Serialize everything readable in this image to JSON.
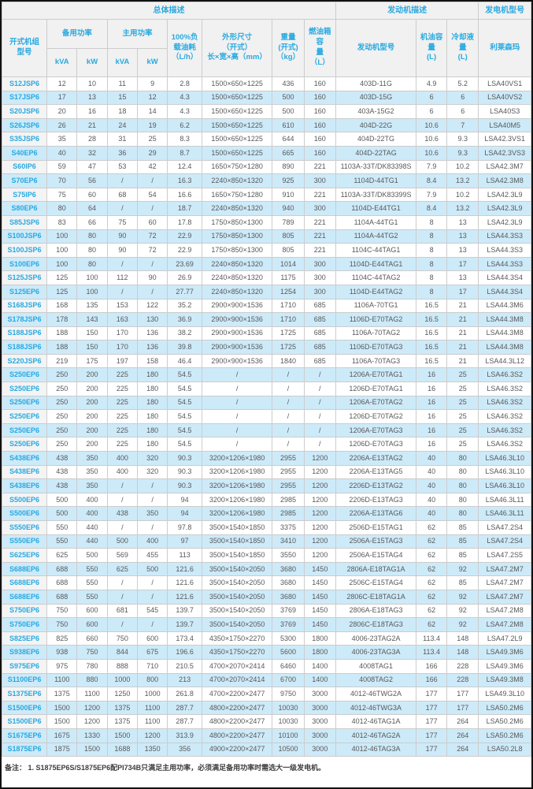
{
  "colors": {
    "accent": "#29A9E0",
    "row_alt": "#CDEAF9",
    "header_bg": "#F1F1F1",
    "model_bg": "#F4F4F4",
    "border": "#CCCCCC",
    "text": "#595959"
  },
  "header": {
    "groups": [
      {
        "label": "总体描述",
        "colspan": 9
      },
      {
        "label": "发动机描述",
        "colspan": 3
      },
      {
        "label": "发电机型号",
        "colspan": 1
      }
    ],
    "model": "开式机组\n型号",
    "standby": "备用功率",
    "prime": "主用功率",
    "sub_kva": "kVA",
    "sub_kw": "kW",
    "fuel": "100%负\n载油耗\n（L/h）",
    "dims": "外形尺寸\n（开式）\n长×宽×高（mm）",
    "weight": "重量\n(开式)\n（kg）",
    "tank": "燃油箱容\n量\n（L）",
    "engine": "发动机型号",
    "oil": "机油容量\n(L)",
    "coolant": "冷却液量\n(L)",
    "alternator": "利莱森玛"
  },
  "rows": [
    [
      "S12JSP6",
      "12",
      "10",
      "11",
      "9",
      "2.8",
      "1500×650×1225",
      "436",
      "160",
      "403D-11G",
      "4.9",
      "5.2",
      "LSA40VS1"
    ],
    [
      "S17JSP6",
      "17",
      "13",
      "15",
      "12",
      "4.3",
      "1500×650×1225",
      "500",
      "160",
      "403D-15G",
      "6",
      "6",
      "LSA40VS2"
    ],
    [
      "S20JSP6",
      "20",
      "16",
      "18",
      "14",
      "4.3",
      "1500×650×1225",
      "500",
      "160",
      "403A-15G2",
      "6",
      "6",
      "LSA40S3"
    ],
    [
      "S26JSP6",
      "26",
      "21",
      "24",
      "19",
      "6.2",
      "1500×650×1225",
      "610",
      "160",
      "404D-22G",
      "10.6",
      "7",
      "LSA40M5"
    ],
    [
      "S35JSP6",
      "35",
      "28",
      "31",
      "25",
      "8.3",
      "1500×650×1225",
      "644",
      "160",
      "404D-22TG",
      "10.6",
      "9.3",
      "LSA42.3VS1"
    ],
    [
      "S40EP6",
      "40",
      "32",
      "36",
      "29",
      "8.7",
      "1500×650×1225",
      "665",
      "160",
      "404D-22TAG",
      "10.6",
      "9.3",
      "LSA42.3VS3"
    ],
    [
      "S60IP6",
      "59",
      "47",
      "53",
      "42",
      "12.4",
      "1650×750×1280",
      "890",
      "221",
      "1103A-33T/DK83398S",
      "7.9",
      "10.2",
      "LSA42.3M7"
    ],
    [
      "S70EP6",
      "70",
      "56",
      "/",
      "/",
      "16.3",
      "2240×850×1320",
      "925",
      "300",
      "1104D-44TG1",
      "8.4",
      "13.2",
      "LSA42.3M8"
    ],
    [
      "S75IP6",
      "75",
      "60",
      "68",
      "54",
      "16.6",
      "1650×750×1280",
      "910",
      "221",
      "1103A-33T/DK83399S",
      "7.9",
      "10.2",
      "LSA42.3L9"
    ],
    [
      "S80EP6",
      "80",
      "64",
      "/",
      "/",
      "18.7",
      "2240×850×1320",
      "940",
      "300",
      "1104D-E44TG1",
      "8.4",
      "13.2",
      "LSA42.3L9"
    ],
    [
      "S85JSP6",
      "83",
      "66",
      "75",
      "60",
      "17.8",
      "1750×850×1300",
      "789",
      "221",
      "1104A-44TG1",
      "8",
      "13",
      "LSA42.3L9"
    ],
    [
      "S100JSP6",
      "100",
      "80",
      "90",
      "72",
      "22.9",
      "1750×850×1300",
      "805",
      "221",
      "1104A-44TG2",
      "8",
      "13",
      "LSA44.3S3"
    ],
    [
      "S100JSP6",
      "100",
      "80",
      "90",
      "72",
      "22.9",
      "1750×850×1300",
      "805",
      "221",
      "1104C-44TAG1",
      "8",
      "13",
      "LSA44.3S3"
    ],
    [
      "S100EP6",
      "100",
      "80",
      "/",
      "/",
      "23.69",
      "2240×850×1320",
      "1014",
      "300",
      "1104D-E44TAG1",
      "8",
      "17",
      "LSA44.3S3"
    ],
    [
      "S125JSP6",
      "125",
      "100",
      "112",
      "90",
      "26.9",
      "2240×850×1320",
      "1175",
      "300",
      "1104C-44TAG2",
      "8",
      "13",
      "LSA44.3S4"
    ],
    [
      "S125EP6",
      "125",
      "100",
      "/",
      "/",
      "27.77",
      "2240×850×1320",
      "1254",
      "300",
      "1104D-E44TAG2",
      "8",
      "17",
      "LSA44.3S4"
    ],
    [
      "S168JSP6",
      "168",
      "135",
      "153",
      "122",
      "35.2",
      "2900×900×1536",
      "1710",
      "685",
      "1106A-70TG1",
      "16.5",
      "21",
      "LSA44.3M6"
    ],
    [
      "S178JSP6",
      "178",
      "143",
      "163",
      "130",
      "36.9",
      "2900×900×1536",
      "1710",
      "685",
      "1106D-E70TAG2",
      "16.5",
      "21",
      "LSA44.3M8"
    ],
    [
      "S188JSP6",
      "188",
      "150",
      "170",
      "136",
      "38.2",
      "2900×900×1536",
      "1725",
      "685",
      "1106A-70TAG2",
      "16.5",
      "21",
      "LSA44.3M8"
    ],
    [
      "S188JSP6",
      "188",
      "150",
      "170",
      "136",
      "39.8",
      "2900×900×1536",
      "1725",
      "685",
      "1106D-E70TAG3",
      "16.5",
      "21",
      "LSA44.3M8"
    ],
    [
      "S220JSP6",
      "219",
      "175",
      "197",
      "158",
      "46.4",
      "2900×900×1536",
      "1840",
      "685",
      "1106A-70TAG3",
      "16.5",
      "21",
      "LSA44.3L12"
    ],
    [
      "S250EP6",
      "250",
      "200",
      "225",
      "180",
      "54.5",
      "/",
      "/",
      "/",
      "1206A-E70TAG1",
      "16",
      "25",
      "LSA46.3S2"
    ],
    [
      "S250EP6",
      "250",
      "200",
      "225",
      "180",
      "54.5",
      "/",
      "/",
      "/",
      "1206D-E70TAG1",
      "16",
      "25",
      "LSA46.3S2"
    ],
    [
      "S250EP6",
      "250",
      "200",
      "225",
      "180",
      "54.5",
      "/",
      "/",
      "/",
      "1206A-E70TAG2",
      "16",
      "25",
      "LSA46.3S2"
    ],
    [
      "S250EP6",
      "250",
      "200",
      "225",
      "180",
      "54.5",
      "/",
      "/",
      "/",
      "1206D-E70TAG2",
      "16",
      "25",
      "LSA46.3S2"
    ],
    [
      "S250EP6",
      "250",
      "200",
      "225",
      "180",
      "54.5",
      "/",
      "/",
      "/",
      "1206A-E70TAG3",
      "16",
      "25",
      "LSA46.3S2"
    ],
    [
      "S250EP6",
      "250",
      "200",
      "225",
      "180",
      "54.5",
      "/",
      "/",
      "/",
      "1206D-E70TAG3",
      "16",
      "25",
      "LSA46.3S2"
    ],
    [
      "S438EP6",
      "438",
      "350",
      "400",
      "320",
      "90.3",
      "3200×1206×1980",
      "2955",
      "1200",
      "2206A-E13TAG2",
      "40",
      "80",
      "LSA46.3L10"
    ],
    [
      "S438EP6",
      "438",
      "350",
      "400",
      "320",
      "90.3",
      "3200×1206×1980",
      "2955",
      "1200",
      "2206A-E13TAG5",
      "40",
      "80",
      "LSA46.3L10"
    ],
    [
      "S438EP6",
      "438",
      "350",
      "/",
      "/",
      "90.3",
      "3200×1206×1980",
      "2955",
      "1200",
      "2206D-E13TAG2",
      "40",
      "80",
      "LSA46.3L10"
    ],
    [
      "S500EP6",
      "500",
      "400",
      "/",
      "/",
      "94",
      "3200×1206×1980",
      "2985",
      "1200",
      "2206D-E13TAG3",
      "40",
      "80",
      "LSA46.3L11"
    ],
    [
      "S500EP6",
      "500",
      "400",
      "438",
      "350",
      "94",
      "3200×1206×1980",
      "2985",
      "1200",
      "2206A-E13TAG6",
      "40",
      "80",
      "LSA46.3L11"
    ],
    [
      "S550EP6",
      "550",
      "440",
      "/",
      "/",
      "97.8",
      "3500×1540×1850",
      "3375",
      "1200",
      "2506D-E15TAG1",
      "62",
      "85",
      "LSA47.2S4"
    ],
    [
      "S550EP6",
      "550",
      "440",
      "500",
      "400",
      "97",
      "3500×1540×1850",
      "3410",
      "1200",
      "2506A-E15TAG3",
      "62",
      "85",
      "LSA47.2S4"
    ],
    [
      "S625EP6",
      "625",
      "500",
      "569",
      "455",
      "113",
      "3500×1540×1850",
      "3550",
      "1200",
      "2506A-E15TAG4",
      "62",
      "85",
      "LSA47.2S5"
    ],
    [
      "S688EP6",
      "688",
      "550",
      "625",
      "500",
      "121.6",
      "3500×1540×2050",
      "3680",
      "1450",
      "2806A-E18TAG1A",
      "62",
      "92",
      "LSA47.2M7"
    ],
    [
      "S688EP6",
      "688",
      "550",
      "/",
      "/",
      "121.6",
      "3500×1540×2050",
      "3680",
      "1450",
      "2506C-E15TAG4",
      "62",
      "85",
      "LSA47.2M7"
    ],
    [
      "S688EP6",
      "688",
      "550",
      "/",
      "/",
      "121.6",
      "3500×1540×2050",
      "3680",
      "1450",
      "2806C-E18TAG1A",
      "62",
      "92",
      "LSA47.2M7"
    ],
    [
      "S750EP6",
      "750",
      "600",
      "681",
      "545",
      "139.7",
      "3500×1540×2050",
      "3769",
      "1450",
      "2806A-E18TAG3",
      "62",
      "92",
      "LSA47.2M8"
    ],
    [
      "S750EP6",
      "750",
      "600",
      "/",
      "/",
      "139.7",
      "3500×1540×2050",
      "3769",
      "1450",
      "2806C-E18TAG3",
      "62",
      "92",
      "LSA47.2M8"
    ],
    [
      "S825EP6",
      "825",
      "660",
      "750",
      "600",
      "173.4",
      "4350×1750×2270",
      "5300",
      "1800",
      "4006-23TAG2A",
      "113.4",
      "148",
      "LSA47.2L9"
    ],
    [
      "S938EP6",
      "938",
      "750",
      "844",
      "675",
      "196.6",
      "4350×1750×2270",
      "5600",
      "1800",
      "4006-23TAG3A",
      "113.4",
      "148",
      "LSA49.3M6"
    ],
    [
      "S975EP6",
      "975",
      "780",
      "888",
      "710",
      "210.5",
      "4700×2070×2414",
      "6460",
      "1400",
      "4008TAG1",
      "166",
      "228",
      "LSA49.3M6"
    ],
    [
      "S1100EP6",
      "1100",
      "880",
      "1000",
      "800",
      "213",
      "4700×2070×2414",
      "6700",
      "1400",
      "4008TAG2",
      "166",
      "228",
      "LSA49.3M8"
    ],
    [
      "S1375EP6",
      "1375",
      "1100",
      "1250",
      "1000",
      "261.8",
      "4700×2200×2477",
      "9750",
      "3000",
      "4012-46TWG2A",
      "177",
      "177",
      "LSA49.3L10"
    ],
    [
      "S1500EP6",
      "1500",
      "1200",
      "1375",
      "1100",
      "287.7",
      "4800×2200×2477",
      "10030",
      "3000",
      "4012-46TWG3A",
      "177",
      "177",
      "LSA50.2M6"
    ],
    [
      "S1500EP6",
      "1500",
      "1200",
      "1375",
      "1100",
      "287.7",
      "4800×2200×2477",
      "10030",
      "3000",
      "4012-46TAG1A",
      "177",
      "264",
      "LSA50.2M6"
    ],
    [
      "S1675EP6",
      "1675",
      "1330",
      "1500",
      "1200",
      "313.9",
      "4800×2200×2477",
      "10100",
      "3000",
      "4012-46TAG2A",
      "177",
      "264",
      "LSA50.2M6"
    ],
    [
      "S1875EP6",
      "1875",
      "1500",
      "1688",
      "1350",
      "356",
      "4900×2200×2477",
      "10500",
      "3000",
      "4012-46TAG3A",
      "177",
      "264",
      "LSA50.2L8"
    ]
  ],
  "note": "备注：  1. S1875EP6S/S1875EP6配PI734B只满足主用功率，必须满足备用功率时需选大一级发电机。"
}
